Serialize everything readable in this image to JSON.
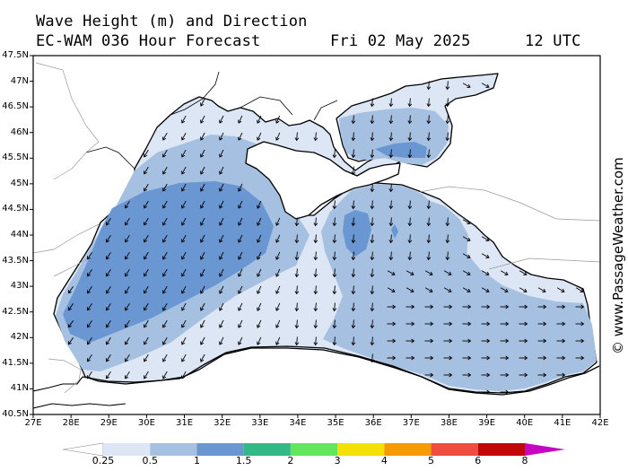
{
  "header": {
    "title_line1": "Wave Height (m) and Direction",
    "model": "EC-WAM 036 Hour Forecast",
    "date": "Fri 02 May 2025",
    "time": "12 UTC"
  },
  "credit": "© www.PassageWeather.com",
  "map": {
    "lat_labels": [
      "47.5N",
      "47N",
      "46.5N",
      "46N",
      "45.5N",
      "45N",
      "44.5N",
      "44N",
      "43.5N",
      "43N",
      "42.5N",
      "42N",
      "41.5N",
      "41N",
      "40.5N"
    ],
    "lon_labels": [
      "27E",
      "28E",
      "29E",
      "30E",
      "31E",
      "32E",
      "33E",
      "34E",
      "35E",
      "36E",
      "37E",
      "38E",
      "39E",
      "40E",
      "41E",
      "42E"
    ]
  },
  "legend": {
    "tick_labels": [
      "0.25",
      "0.5",
      "1",
      "1.5",
      "2",
      "3",
      "4",
      "5",
      "6",
      "8"
    ],
    "colors": [
      "#ffffff",
      "#dce6f4",
      "#a6c0e2",
      "#6a96d2",
      "#33b887",
      "#63e55e",
      "#f3e106",
      "#f59b06",
      "#ef4d3f",
      "#c00808",
      "#c407c3"
    ]
  },
  "colors": {
    "sea_calm": "#dce6f4",
    "sea_low": "#a6c0e2",
    "sea_mid": "#6a96d2",
    "land": "#ffffff",
    "arrow": "#000000"
  }
}
